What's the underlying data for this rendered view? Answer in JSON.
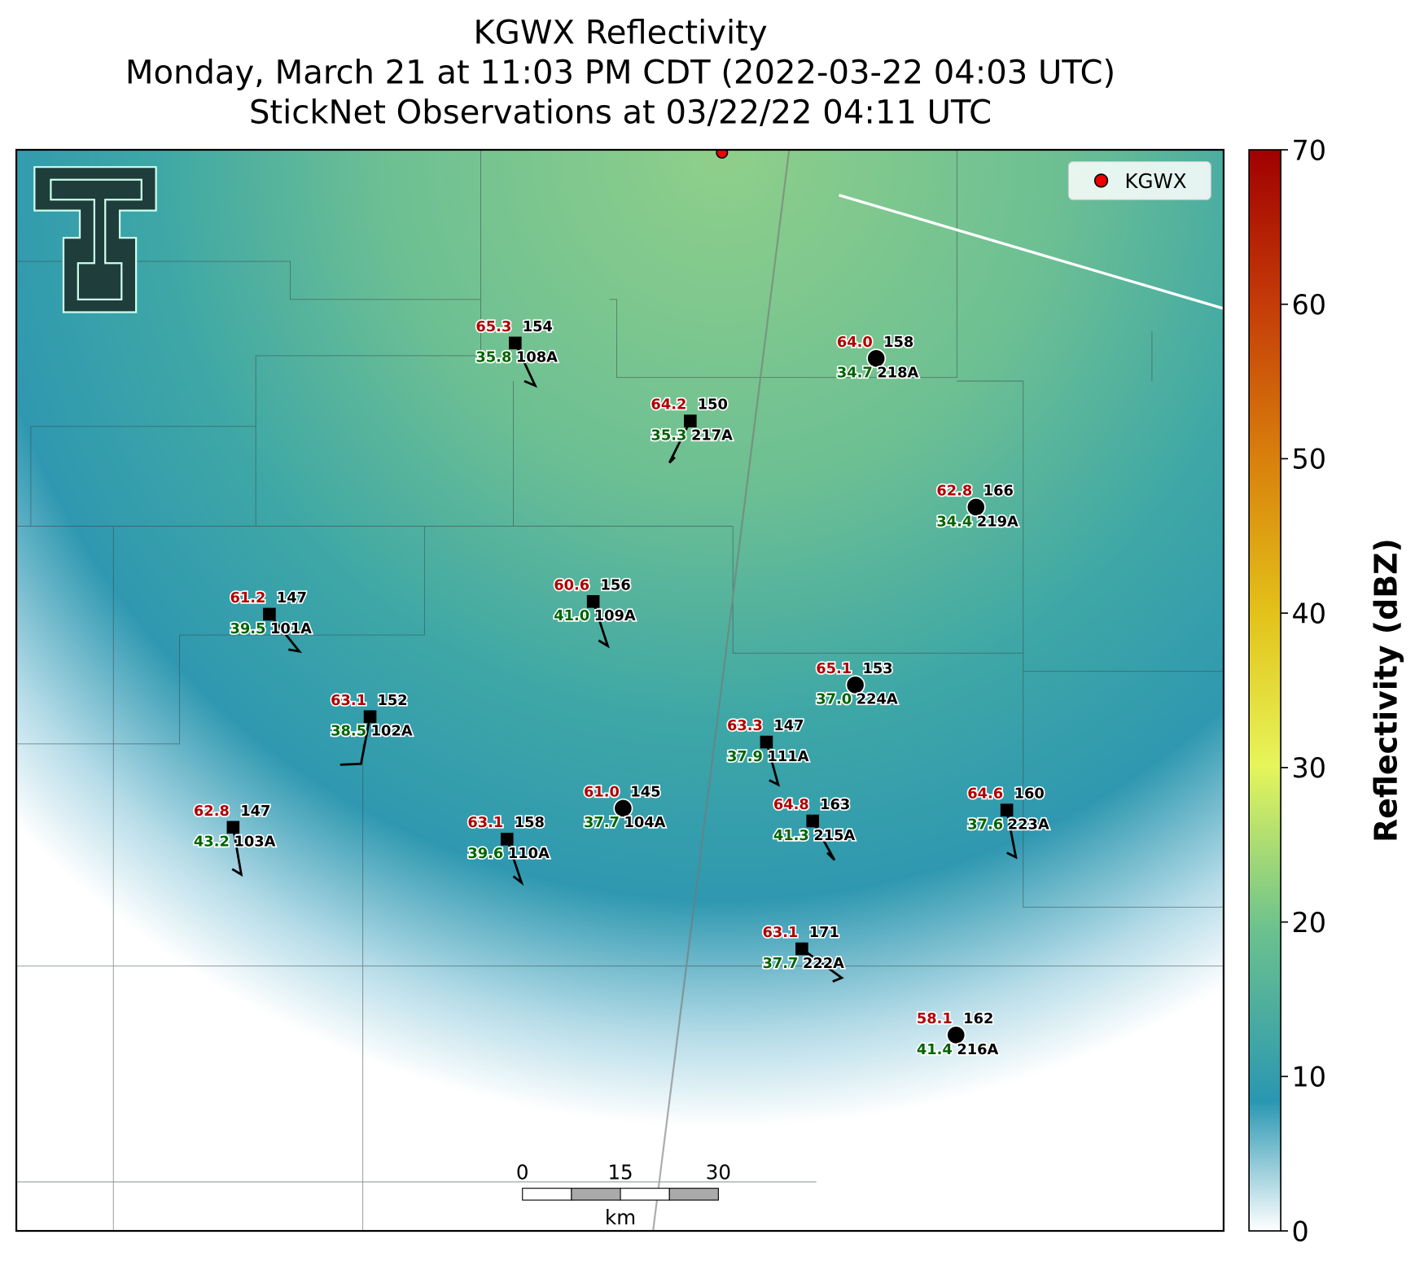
{
  "title": [
    "KGWX Reflectivity",
    "Monday, March 21 at 11:03 PM CDT (2022-03-22 04:03 UTC)",
    "StickNet Observations at 03/22/22 04:11 UTC"
  ],
  "legend": "KGWX",
  "stations": [
    {
      "id": "108A",
      "temperature": "65.3",
      "value": "154",
      "dewpoint": "35.8"
    },
    {
      "id": "218A",
      "temperature": "64.0",
      "value": "158",
      "dewpoint": "34.7"
    },
    {
      "id": "217A",
      "temperature": "64.2",
      "value": "150",
      "dewpoint": "35.3"
    },
    {
      "id": "219A",
      "temperature": "62.8",
      "value": "166",
      "dewpoint": "34.4"
    },
    {
      "id": "109A",
      "temperature": "60.6",
      "value": "156",
      "dewpoint": "41.0"
    },
    {
      "id": "101A",
      "temperature": "61.2",
      "value": "147",
      "dewpoint": "39.5"
    },
    {
      "id": "224A",
      "temperature": "65.1",
      "value": "153",
      "dewpoint": "37.0"
    },
    {
      "id": "102A",
      "temperature": "63.1",
      "value": "152",
      "dewpoint": "38.5"
    },
    {
      "id": "111A",
      "temperature": "63.3",
      "value": "147",
      "dewpoint": "37.9"
    },
    {
      "id": "104A",
      "temperature": "61.0",
      "value": "145",
      "dewpoint": "37.7"
    },
    {
      "id": "215A",
      "temperature": "64.8",
      "value": "163",
      "dewpoint": "41.3"
    },
    {
      "id": "223A",
      "temperature": "64.6",
      "value": "160",
      "dewpoint": "37.6"
    },
    {
      "id": "103A",
      "temperature": "62.8",
      "value": "147",
      "dewpoint": "43.2"
    },
    {
      "id": "110A",
      "temperature": "63.1",
      "value": "158",
      "dewpoint": "39.6"
    },
    {
      "id": "222A",
      "temperature": "63.1",
      "value": "171",
      "dewpoint": "37.7"
    },
    {
      "id": "216A",
      "temperature": "58.1",
      "value": "162",
      "dewpoint": "41.4"
    }
  ],
  "colorbar": {
    "label": "Reflectivity (dBZ)",
    "lim": [
      0,
      70
    ],
    "ticks": [
      0,
      10,
      20,
      30,
      40,
      50,
      60,
      70
    ]
  },
  "scale_bar": {
    "ticks": [
      0,
      15,
      30
    ],
    "unit": "km"
  }
}
